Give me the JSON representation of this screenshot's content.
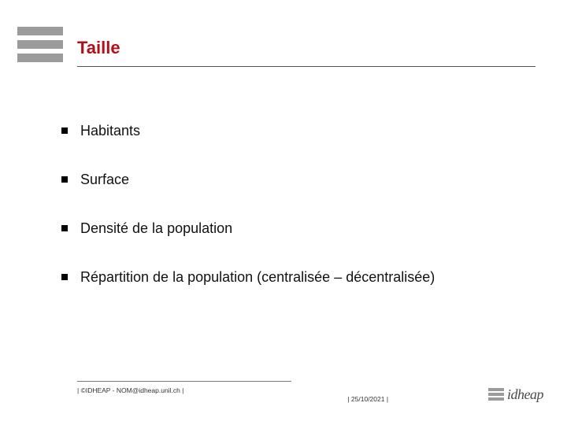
{
  "theme": {
    "accent_color": "#b30f19",
    "text_color": "#111111",
    "bar_color": "#9b9b9b",
    "background": "#ffffff",
    "bullet_marker": "#000000"
  },
  "logo": {
    "bar_count": 3
  },
  "title": "Taille",
  "bullets": [
    "Habitants",
    "Surface",
    "Densité de la population",
    "Répartition de la population (centralisée – décentralisée)"
  ],
  "footer": {
    "left": "| ©IDHEAP - NOM@idheap.unil.ch |",
    "date": "| 25/10/2021 |",
    "brand": "idheap"
  }
}
